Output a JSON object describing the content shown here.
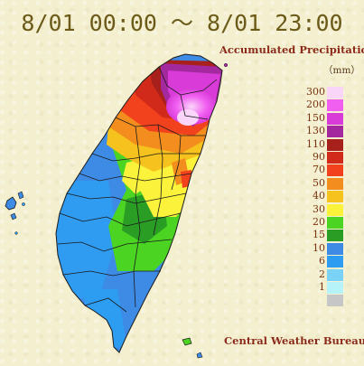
{
  "title": "8/01 00:00 ～ 8/01 23:00",
  "subtitle": "Accumulated Precipitation",
  "unit": "（mm）",
  "credit": "Central Weather Bureau",
  "legend": [
    {
      "label": "300",
      "color": "#f9d6f9"
    },
    {
      "label": "200",
      "color": "#f15ff1"
    },
    {
      "label": "150",
      "color": "#d83bd8"
    },
    {
      "label": "130",
      "color": "#a4299f"
    },
    {
      "label": "110",
      "color": "#a7201c"
    },
    {
      "label": "90",
      "color": "#d12a1a"
    },
    {
      "label": "70",
      "color": "#f2421d"
    },
    {
      "label": "50",
      "color": "#f38e1e"
    },
    {
      "label": "40",
      "color": "#f6c21e"
    },
    {
      "label": "30",
      "color": "#fbf23b"
    },
    {
      "label": "20",
      "color": "#4cd422"
    },
    {
      "label": "15",
      "color": "#2a9d25"
    },
    {
      "label": "10",
      "color": "#3e8be6"
    },
    {
      "label": "6",
      "color": "#2d9df2"
    },
    {
      "label": "2",
      "color": "#7ad3f7"
    },
    {
      "label": "1",
      "color": "#b5f3f9"
    },
    {
      "label": "",
      "color": "#c6c6c6"
    }
  ]
}
